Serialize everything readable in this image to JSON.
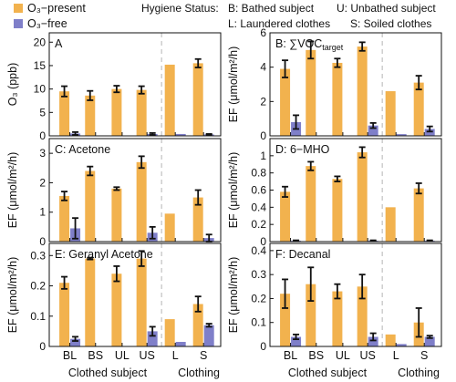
{
  "colors": {
    "o3_present": "#F2B24E",
    "o3_free": "#7F7FC9",
    "error_bar": "#111111",
    "divider": "#b5b5b5"
  },
  "legend": {
    "o3_present_label": "O₃−present",
    "o3_free_label": "O₃−free",
    "hygiene_title": "Hygiene Status:",
    "b_label": "B: Bathed subject",
    "u_label": "U: Unbathed subject",
    "l_label": "L: Laundered clothes",
    "s_label": "S: Soiled clothes"
  },
  "x_axis": {
    "tick_labels": [
      "BL",
      "BS",
      "UL",
      "US",
      "L",
      "S"
    ],
    "group_clothed": "Clothed subject",
    "group_clothing": "Clothing"
  },
  "chart_data": [
    {
      "type": "bar",
      "panel": "A",
      "ylabel": "O₃ (ppb)",
      "ylim": [
        0,
        22
      ],
      "yticks": [
        0,
        5,
        10,
        15,
        20
      ],
      "categories": [
        "BL",
        "BS",
        "UL",
        "US",
        "L",
        "S"
      ],
      "series": [
        {
          "name": "O₃−present",
          "values": [
            9.5,
            8.6,
            10.0,
            9.8,
            15.2,
            15.5
          ],
          "errors": [
            1.1,
            1.0,
            0.7,
            0.8,
            0,
            0.9
          ]
        },
        {
          "name": "O₃−free",
          "values": [
            0.5,
            0,
            0,
            0.4,
            0.4,
            0.3
          ],
          "errors": [
            0.3,
            0,
            0,
            0.2,
            0,
            0.1
          ]
        }
      ]
    },
    {
      "type": "bar",
      "panel": "B",
      "title_parts": [
        "B: ",
        "∑VOC",
        "target"
      ],
      "ylabel": "EF (μmol/m²/h)",
      "ylim": [
        0,
        6
      ],
      "yticks": [
        0,
        2,
        4,
        6
      ],
      "categories": [
        "BL",
        "BS",
        "UL",
        "US",
        "L",
        "S"
      ],
      "series": [
        {
          "name": "O₃−present",
          "values": [
            3.9,
            5.0,
            4.25,
            5.2,
            2.6,
            3.1
          ],
          "errors": [
            0.5,
            0.5,
            0.25,
            0.25,
            0,
            0.4
          ]
        },
        {
          "name": "O₃−free",
          "values": [
            0.8,
            0,
            0,
            0.6,
            0.1,
            0.4
          ],
          "errors": [
            0.4,
            0,
            0,
            0.15,
            0,
            0.15
          ]
        }
      ]
    },
    {
      "type": "bar",
      "panel": "C",
      "title": "C: Acetone",
      "ylabel": "EF (μmol/m²/h)",
      "ylim": [
        0,
        3.5
      ],
      "yticks": [
        0,
        1,
        2,
        3
      ],
      "categories": [
        "BL",
        "BS",
        "UL",
        "US",
        "L",
        "S"
      ],
      "series": [
        {
          "name": "O₃−present",
          "values": [
            1.55,
            2.4,
            1.8,
            2.7,
            0.95,
            1.5
          ],
          "errors": [
            0.15,
            0.15,
            0.05,
            0.2,
            0,
            0.25
          ]
        },
        {
          "name": "O₃−free",
          "values": [
            0.45,
            0,
            0,
            0.3,
            0,
            0.12
          ],
          "errors": [
            0.35,
            0,
            0,
            0.2,
            0,
            0.12
          ]
        }
      ]
    },
    {
      "type": "bar",
      "panel": "D",
      "title": "D: 6−MHO",
      "ylabel": "EF (μmol/m²/h)",
      "ylim": [
        0,
        1.2
      ],
      "yticks": [
        0,
        0.2,
        0.4,
        0.6,
        0.8,
        1.0
      ],
      "categories": [
        "BL",
        "BS",
        "UL",
        "US",
        "L",
        "S"
      ],
      "series": [
        {
          "name": "O₃−present",
          "values": [
            0.58,
            0.88,
            0.73,
            1.04,
            0.4,
            0.62
          ],
          "errors": [
            0.06,
            0.05,
            0.03,
            0.06,
            0,
            0.06
          ]
        },
        {
          "name": "O₃−free",
          "values": [
            0.01,
            0,
            0,
            0.01,
            0,
            0.01
          ],
          "errors": [
            0.005,
            0,
            0,
            0.005,
            0,
            0.005
          ]
        }
      ]
    },
    {
      "type": "bar",
      "panel": "E",
      "title": "E: Geranyl Acetone",
      "ylabel": "EF (μmol/m²/h)",
      "ylim": [
        0,
        0.34
      ],
      "yticks": [
        0,
        0.1,
        0.2,
        0.3
      ],
      "categories": [
        "BL",
        "BS",
        "UL",
        "US",
        "L",
        "S"
      ],
      "series": [
        {
          "name": "O₃−present",
          "values": [
            0.21,
            0.29,
            0.24,
            0.29,
            0.09,
            0.14
          ],
          "errors": [
            0.02,
            0.003,
            0.025,
            0.025,
            0,
            0.025
          ]
        },
        {
          "name": "O₃−free",
          "values": [
            0.025,
            0,
            0,
            0.05,
            0.015,
            0.07
          ],
          "errors": [
            0.007,
            0,
            0,
            0.015,
            0,
            0.005
          ]
        }
      ]
    },
    {
      "type": "bar",
      "panel": "F",
      "title": "F: Decanal",
      "ylabel": "EF (μmol/m²/h)",
      "ylim": [
        0,
        0.43
      ],
      "yticks": [
        0,
        0.1,
        0.2,
        0.3,
        0.4
      ],
      "categories": [
        "BL",
        "BS",
        "UL",
        "US",
        "L",
        "S"
      ],
      "series": [
        {
          "name": "O₃−present",
          "values": [
            0.22,
            0.26,
            0.23,
            0.25,
            0.05,
            0.1
          ],
          "errors": [
            0.06,
            0.07,
            0.03,
            0.05,
            0,
            0.06
          ]
        },
        {
          "name": "O₃−free",
          "values": [
            0.04,
            0,
            0,
            0.04,
            0.01,
            0.04
          ],
          "errors": [
            0.01,
            0,
            0,
            0.015,
            0,
            0.005
          ]
        }
      ]
    }
  ]
}
